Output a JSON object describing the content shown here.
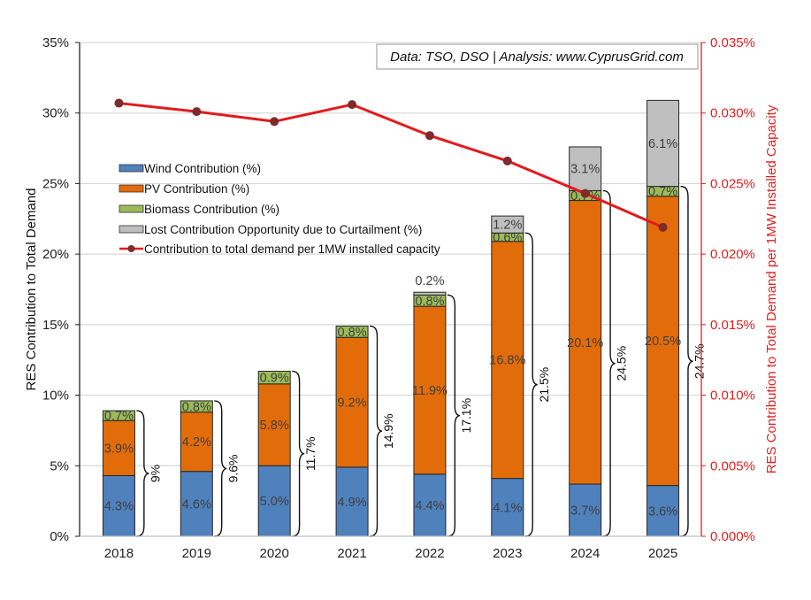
{
  "chart_data": {
    "type": "bar",
    "stacked": true,
    "categories": [
      "2018",
      "2019",
      "2020",
      "2021",
      "2022",
      "2023",
      "2024",
      "2025"
    ],
    "series": [
      {
        "name": "Wind Contribution (%)",
        "key": "wind",
        "color": "#4f81bd",
        "values": [
          4.3,
          4.6,
          5.0,
          4.9,
          4.4,
          4.1,
          3.7,
          3.6
        ],
        "labels": [
          "4.3%",
          "4.6%",
          "5.0%",
          "4.9%",
          "4.4%",
          "4.1%",
          "3.7%",
          "3.6%"
        ]
      },
      {
        "name": "PV Contribution (%)",
        "key": "pv",
        "color": "#e36c0a",
        "values": [
          3.9,
          4.2,
          5.8,
          9.2,
          11.9,
          16.8,
          20.1,
          20.5
        ],
        "labels": [
          "3.9%",
          "4.2%",
          "5.8%",
          "9.2%",
          "11.9%",
          "16.8%",
          "20.1%",
          "20.5%"
        ]
      },
      {
        "name": "Biomass Contribution (%)",
        "key": "biomass",
        "color": "#9bbb59",
        "values": [
          0.7,
          0.8,
          0.9,
          0.8,
          0.8,
          0.6,
          0.7,
          0.7
        ],
        "labels": [
          "0.7%",
          "0.8%",
          "0.9%",
          "0.8%",
          "0.8%",
          "0.6%",
          "0.7%",
          "0.7%"
        ]
      },
      {
        "name": "Lost Contribution Opportunity due to Curtailment (%)",
        "key": "curtail",
        "color": "#bfbfbf",
        "values": [
          0,
          0,
          0,
          0,
          0.2,
          1.2,
          3.1,
          6.1
        ],
        "labels": [
          "",
          "",
          "",
          "",
          "0.2%",
          "1.2%",
          "3.1%",
          "6.1%"
        ]
      }
    ],
    "line_series": {
      "name": "Contribution to total demand per 1MW installed capacity",
      "axis": "right",
      "color": "#e31a1c",
      "marker_color": "#7f2b2b",
      "values": [
        0.0307,
        0.0301,
        0.0294,
        0.0306,
        0.0284,
        0.0266,
        0.0243,
        0.0219
      ]
    },
    "totals": [
      "9%",
      "9.6%",
      "11.7%",
      "14.9%",
      "17.1%",
      "21.5%",
      "24.5%",
      "24.7%"
    ],
    "ylabel": "RES Contribution to Total Demand",
    "ylabel_right": "RES Contribution to Total Demand per 1MW Installed Capacity",
    "ylim": [
      0,
      35
    ],
    "ylim_right": [
      0,
      0.035
    ],
    "yticks": [
      "0%",
      "5%",
      "10%",
      "15%",
      "20%",
      "25%",
      "30%",
      "35%"
    ],
    "yticks_right": [
      "0.000%",
      "0.005%",
      "0.010%",
      "0.015%",
      "0.020%",
      "0.025%",
      "0.030%",
      "0.035%"
    ],
    "grid": true,
    "legend_position": "upper-left",
    "annotation": "Data: TSO, DSO | Analysis: www.CyprusGrid.com",
    "title": ""
  }
}
